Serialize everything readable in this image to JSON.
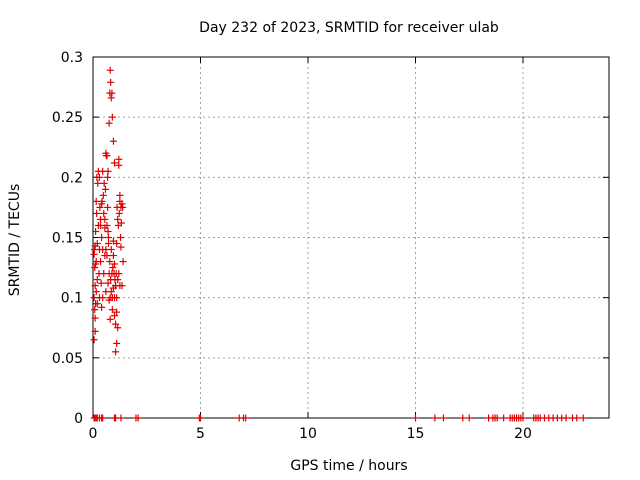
{
  "chart_data": {
    "type": "scatter",
    "title": "Day 232 of 2023, SRMTID for receiver ulab",
    "xlabel": "GPS time / hours",
    "ylabel": "SRMTID / TECUs",
    "xlim": [
      0,
      24
    ],
    "ylim": [
      0,
      0.3
    ],
    "xticks": [
      0,
      5,
      10,
      15,
      20
    ],
    "xtick_labels": [
      "0",
      "5",
      "10",
      "15",
      "20"
    ],
    "yticks": [
      0,
      0.05,
      0.1,
      0.15,
      0.2,
      0.25,
      0.3
    ],
    "ytick_labels": [
      "0",
      "0.05",
      "0.1",
      "0.15",
      "0.2",
      "0.25",
      "0.3"
    ],
    "grid": true,
    "legend": "none",
    "marker": "+",
    "color": "#e00000",
    "series": [
      {
        "x": [
          0.05,
          0.05,
          0.07,
          0.08,
          0.08,
          0.1,
          0.1,
          0.12,
          0.12,
          0.15,
          0.15,
          0.17,
          0.18,
          0.2,
          0.2,
          0.22,
          0.25,
          0.25,
          0.28,
          0.3,
          0.3,
          0.32,
          0.35,
          0.35,
          0.38,
          0.4,
          0.4,
          0.42,
          0.45,
          0.45,
          0.48,
          0.5,
          0.5,
          0.52,
          0.55,
          0.55,
          0.58,
          0.6,
          0.6,
          0.62,
          0.65,
          0.65,
          0.68,
          0.7,
          0.7,
          0.72,
          0.75,
          0.75,
          0.78,
          0.8,
          0.8,
          0.82,
          0.85,
          0.85,
          0.88,
          0.9,
          0.9,
          0.92,
          0.95,
          0.95,
          0.98,
          1.0,
          1.0,
          1.02,
          1.05,
          1.05,
          1.08,
          1.1,
          1.1,
          1.12,
          1.15,
          1.15,
          1.18,
          1.2,
          1.2,
          1.22,
          1.25,
          1.25,
          1.28,
          1.3,
          1.3,
          1.32,
          1.35,
          1.35,
          1.38,
          1.4,
          0.75,
          0.78,
          0.8,
          0.82,
          0.6,
          0.65,
          0.68,
          0.55,
          0.9,
          0.95,
          1.0,
          1.05,
          1.1,
          1.15,
          0.05,
          0.1,
          0.15,
          0.2,
          0.1,
          0.12,
          1.2,
          1.25,
          0.85,
          0.88,
          0.7,
          0.72,
          0.95,
          1.0,
          1.05,
          1.1,
          0.3,
          0.35,
          0.4,
          0.45
        ],
        "y": [
          0.065,
          0.1,
          0.14,
          0.09,
          0.125,
          0.072,
          0.11,
          0.155,
          0.095,
          0.18,
          0.13,
          0.17,
          0.2,
          0.145,
          0.115,
          0.195,
          0.205,
          0.16,
          0.12,
          0.2,
          0.1,
          0.175,
          0.13,
          0.165,
          0.112,
          0.15,
          0.092,
          0.18,
          0.205,
          0.14,
          0.185,
          0.17,
          0.12,
          0.195,
          0.165,
          0.135,
          0.19,
          0.14,
          0.105,
          0.218,
          0.16,
          0.135,
          0.175,
          0.155,
          0.112,
          0.145,
          0.12,
          0.098,
          0.13,
          0.1,
          0.082,
          0.115,
          0.14,
          0.105,
          0.12,
          0.1,
          0.09,
          0.125,
          0.135,
          0.108,
          0.12,
          0.1,
          0.085,
          0.115,
          0.11,
          0.078,
          0.12,
          0.145,
          0.1,
          0.175,
          0.165,
          0.115,
          0.16,
          0.21,
          0.12,
          0.17,
          0.185,
          0.11,
          0.15,
          0.175,
          0.142,
          0.162,
          0.178,
          0.11,
          0.175,
          0.13,
          0.245,
          0.27,
          0.289,
          0.279,
          0.22,
          0.218,
          0.2,
          0.158,
          0.25,
          0.23,
          0.212,
          0.055,
          0.062,
          0.075,
          0.136,
          0.143,
          0.105,
          0.095,
          0.083,
          0.128,
          0.215,
          0.18,
          0.266,
          0.27,
          0.205,
          0.15,
          0.147,
          0.128,
          0.11,
          0.088,
          0.14,
          0.16,
          0.178,
          0.1
        ]
      },
      {
        "x": [
          0.05,
          0.1,
          0.15,
          0.2,
          0.3,
          0.4,
          0.45,
          1.0,
          1.05,
          1.3,
          2.0,
          2.1,
          4.95,
          5.0,
          6.8,
          7.0,
          7.1,
          15.0,
          15.9,
          16.3,
          17.2,
          17.5,
          18.4,
          18.6,
          18.7,
          18.8,
          19.1,
          19.4,
          19.5,
          19.6,
          19.7,
          19.8,
          19.9,
          20.0,
          20.5,
          20.6,
          20.7,
          20.8,
          21.0,
          21.2,
          21.4,
          21.6,
          21.8,
          22.0,
          22.3,
          22.5,
          22.8
        ],
        "y": [
          0,
          0,
          0,
          0,
          0,
          0,
          0,
          0,
          0,
          0,
          0,
          0,
          0,
          0,
          0,
          0,
          0,
          0,
          0,
          0,
          0,
          0,
          0,
          0,
          0,
          0,
          0,
          0,
          0,
          0,
          0,
          0,
          0,
          0,
          0,
          0,
          0,
          0,
          0,
          0,
          0,
          0,
          0,
          0,
          0,
          0,
          0
        ]
      }
    ]
  }
}
